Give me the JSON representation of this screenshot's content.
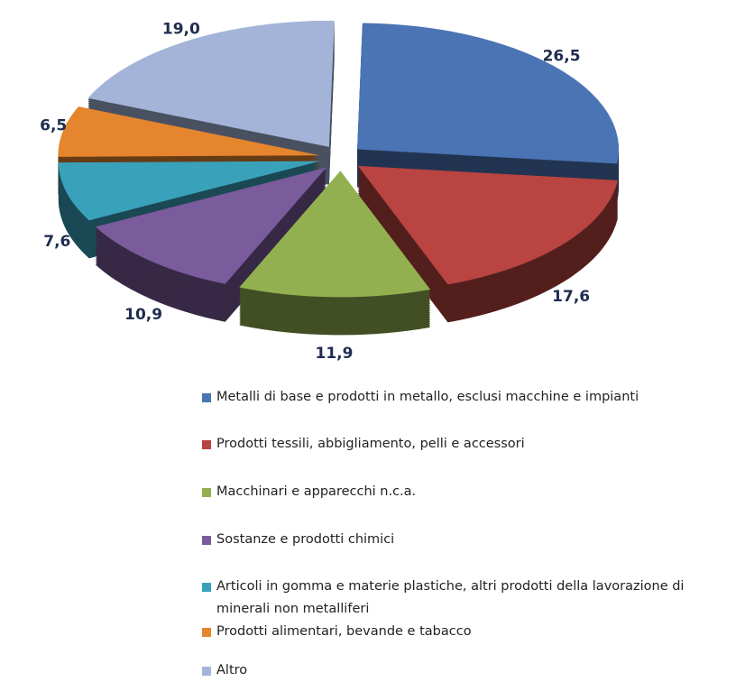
{
  "chart_data": {
    "type": "pie",
    "categories": [
      "Metalli di base e prodotti in metallo, esclusi macchine e impianti",
      "Prodotti tessili, abbigliamento, pelli e accessori",
      "Macchinari e apparecchi n.c.a.",
      "Sostanze e prodotti chimici",
      "Articoli in gomma e materie plastiche, altri prodotti della lavorazione di minerali non metalliferi",
      "Prodotti alimentari, bevande e tabacco",
      "Altro"
    ],
    "values": [
      26.5,
      17.6,
      11.9,
      10.9,
      7.6,
      6.5,
      19.0
    ],
    "value_labels": [
      "26,5",
      "17,6",
      "11,9",
      "10,9",
      "7,6",
      "6,5",
      "19,0"
    ],
    "colors": [
      "#4a74b4",
      "#b94441",
      "#93b050",
      "#7a5b9c",
      "#3aa1bb",
      "#e5852e",
      "#a3b4d8"
    ],
    "legend": "bottom"
  }
}
